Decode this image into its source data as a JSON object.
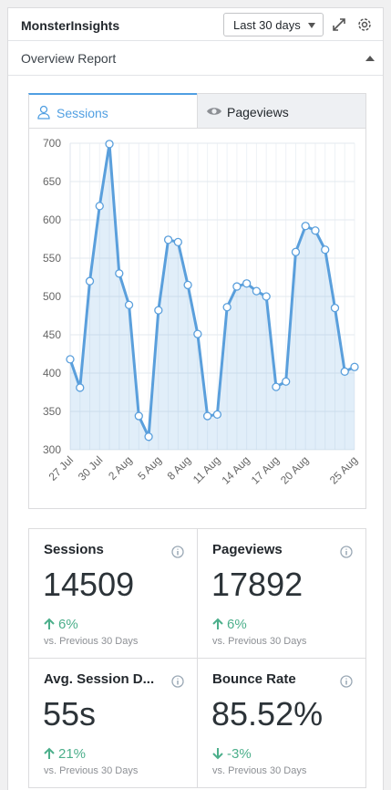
{
  "header": {
    "title": "MonsterInsights",
    "range": "Last 30 days"
  },
  "report": {
    "title": "Overview Report"
  },
  "tabs": [
    "Sessions",
    "Pageviews"
  ],
  "chart_data": {
    "type": "line",
    "categories": [
      "27 Jul",
      null,
      null,
      "30 Jul",
      null,
      null,
      "2 Aug",
      null,
      null,
      "5 Aug",
      null,
      null,
      "8 Aug",
      null,
      null,
      "11 Aug",
      null,
      null,
      "14 Aug",
      null,
      null,
      "17 Aug",
      null,
      null,
      "20 Aug",
      null,
      null,
      null,
      null,
      "25 Aug"
    ],
    "series": [
      {
        "color": "#5a9fdc",
        "values": [
          418,
          381,
          520,
          618,
          699,
          530,
          489,
          344,
          317,
          482,
          574,
          571,
          515,
          451,
          344,
          346,
          486,
          513,
          517,
          507,
          500,
          382,
          389,
          558,
          592,
          586,
          561,
          485,
          402,
          408
        ]
      }
    ],
    "ylim": [
      300,
      700
    ],
    "yticks": [
      300,
      350,
      400,
      450,
      500,
      550,
      600,
      650,
      700
    ],
    "grid": true
  },
  "stats": [
    {
      "title": "Sessions",
      "value": 14509,
      "change": "6%",
      "compare": "vs. Previous 30 Days"
    },
    {
      "title": "Pageviews",
      "value": 17892,
      "change": "6%",
      "compare": "vs. Previous 30 Days"
    },
    {
      "title": "Avg. Session D...",
      "value": "55s",
      "change": "21%",
      "compare": "vs. Previous 30 Days"
    },
    {
      "title": "Bounce Rate",
      "value": "85.52%",
      "change": "-3%",
      "compare": "vs. Previous 30 Days"
    }
  ]
}
